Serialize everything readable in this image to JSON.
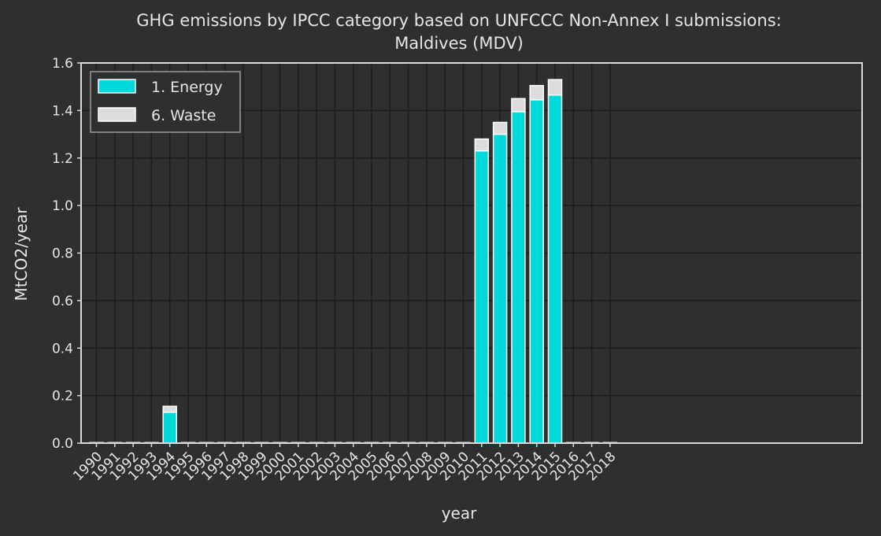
{
  "chart_data": {
    "type": "bar",
    "stacked": true,
    "title_line1": "GHG emissions by IPCC category based on UNFCCC Non-Annex I submissions:",
    "title_line2": "Maldives (MDV)",
    "xlabel": "year",
    "ylabel": "MtCO2/year",
    "ylim": [
      0,
      1.6
    ],
    "yticks": [
      "0.0",
      "0.2",
      "0.4",
      "0.6",
      "0.8",
      "1.0",
      "1.2",
      "1.4",
      "1.6"
    ],
    "grid": true,
    "legend_position": "top-left",
    "categories": [
      "1990",
      "1991",
      "1992",
      "1993",
      "1994",
      "1995",
      "1996",
      "1997",
      "1998",
      "1999",
      "2000",
      "2001",
      "2002",
      "2003",
      "2004",
      "2005",
      "2006",
      "2007",
      "2008",
      "2009",
      "2010",
      "2011",
      "2012",
      "2013",
      "2014",
      "2015",
      "2016",
      "2017",
      "2018"
    ],
    "series": [
      {
        "name": "1. Energy",
        "color": "#00d9d9",
        "values": [
          0,
          0,
          0,
          0,
          0.13,
          0,
          0,
          0,
          0,
          0,
          0,
          0,
          0,
          0,
          0,
          0,
          0,
          0,
          0,
          0,
          0,
          1.23,
          1.3,
          1.395,
          1.445,
          1.465,
          0,
          0,
          0
        ]
      },
      {
        "name": "6. Waste",
        "color": "#dcdcdc",
        "values": [
          0,
          0,
          0,
          0,
          0.025,
          0,
          0,
          0,
          0,
          0,
          0,
          0,
          0,
          0,
          0,
          0,
          0,
          0,
          0,
          0,
          0,
          0.05,
          0.05,
          0.055,
          0.06,
          0.065,
          0,
          0,
          0
        ]
      }
    ]
  }
}
